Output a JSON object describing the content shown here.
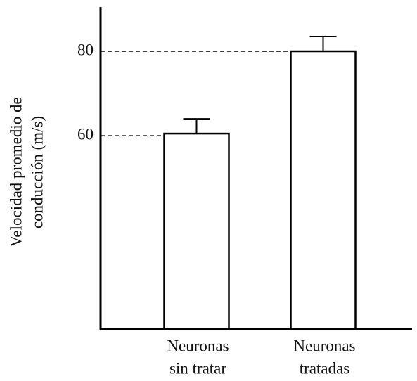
{
  "chart_data": {
    "type": "bar",
    "ylabel": [
      "Velocidad promedio de",
      "conducción (m/s)"
    ],
    "categories": [
      [
        "Neuronas",
        "sin tratar"
      ],
      [
        "Neuronas",
        "tratadas"
      ]
    ],
    "values": [
      60.5,
      80
    ],
    "errors": [
      3.5,
      3.5
    ],
    "color": "#ffffff",
    "ylim": [
      14.2,
      90.5
    ],
    "yticks": [
      60,
      80
    ],
    "grid": false
  }
}
